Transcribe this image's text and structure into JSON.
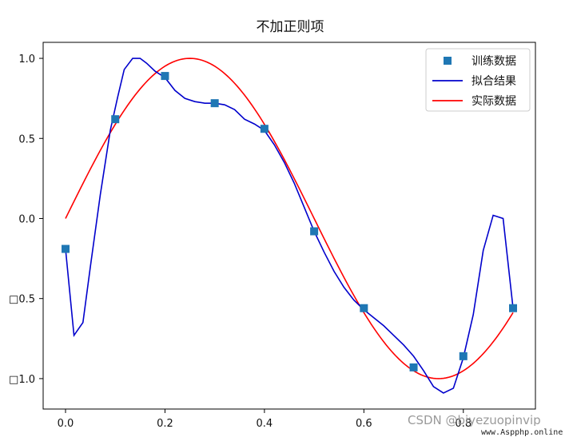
{
  "chart_data": {
    "type": "line",
    "title": "不加正则项",
    "xlim": [
      -0.045,
      0.945
    ],
    "ylim": [
      -1.19,
      1.1
    ],
    "x_ticks": [
      {
        "value": 0.0,
        "label": "0.0"
      },
      {
        "value": 0.2,
        "label": "0.2"
      },
      {
        "value": 0.4,
        "label": "0.4"
      },
      {
        "value": 0.6,
        "label": "0.6"
      },
      {
        "value": 0.8,
        "label": "0.8"
      }
    ],
    "y_ticks": [
      {
        "value": 1.0,
        "label": "1.0"
      },
      {
        "value": 0.5,
        "label": "0.5"
      },
      {
        "value": 0.0,
        "label": "0.0"
      },
      {
        "value": -0.5,
        "label": "□0.5"
      },
      {
        "value": -1.0,
        "label": "□1.0"
      }
    ],
    "grid": false,
    "legend_position": "top-right",
    "series": [
      {
        "name": "训练数据",
        "kind": "scatter",
        "marker": "square",
        "color": "#1f77b4",
        "x": [
          0.0,
          0.1,
          0.2,
          0.3,
          0.4,
          0.5,
          0.6,
          0.7,
          0.8,
          0.9
        ],
        "y": [
          -0.19,
          0.62,
          0.89,
          0.72,
          0.56,
          -0.08,
          -0.56,
          -0.93,
          -0.86,
          -0.56
        ]
      },
      {
        "name": "拟合结果",
        "kind": "line",
        "color": "#0000cc",
        "x": [
          0.0,
          0.017,
          0.035,
          0.05,
          0.07,
          0.09,
          0.105,
          0.118,
          0.135,
          0.15,
          0.163,
          0.18,
          0.2,
          0.22,
          0.24,
          0.26,
          0.28,
          0.3,
          0.32,
          0.34,
          0.36,
          0.38,
          0.4,
          0.42,
          0.44,
          0.46,
          0.48,
          0.5,
          0.52,
          0.54,
          0.56,
          0.58,
          0.6,
          0.62,
          0.64,
          0.66,
          0.68,
          0.7,
          0.72,
          0.74,
          0.76,
          0.78,
          0.8,
          0.82,
          0.84,
          0.86,
          0.88,
          0.9
        ],
        "y": [
          -0.19,
          -0.73,
          -0.65,
          -0.3,
          0.15,
          0.55,
          0.76,
          0.93,
          1.0,
          1.0,
          0.97,
          0.92,
          0.88,
          0.8,
          0.75,
          0.73,
          0.72,
          0.72,
          0.71,
          0.68,
          0.62,
          0.59,
          0.55,
          0.46,
          0.35,
          0.22,
          0.07,
          -0.08,
          -0.21,
          -0.33,
          -0.43,
          -0.51,
          -0.57,
          -0.62,
          -0.67,
          -0.73,
          -0.79,
          -0.86,
          -0.95,
          -1.05,
          -1.09,
          -1.06,
          -0.87,
          -0.6,
          -0.2,
          0.02,
          0.0,
          -0.56
        ]
      },
      {
        "name": "实际数据",
        "kind": "function",
        "function": "sin(2*pi*x)",
        "color": "#ff0000",
        "x_range": [
          0.0,
          0.9
        ],
        "samples": 181
      }
    ]
  },
  "watermark": {
    "csdn": "CSDN @biyezuopinvip",
    "site": "www.Aspphp.online"
  }
}
